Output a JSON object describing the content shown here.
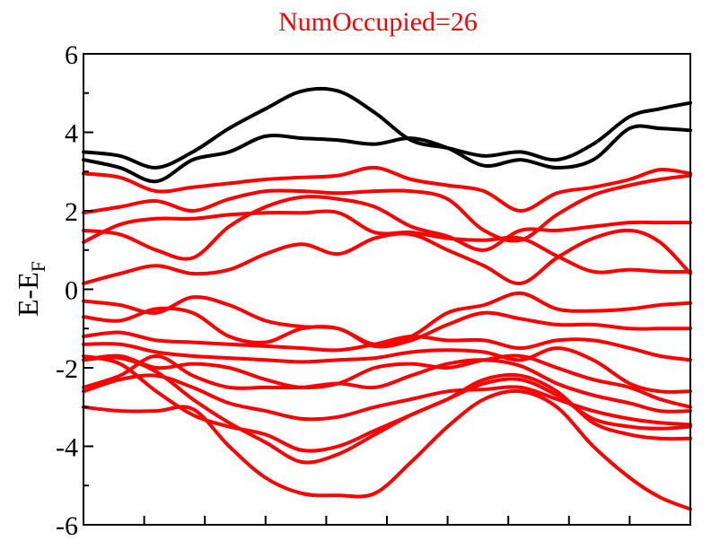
{
  "chart_data": {
    "type": "line",
    "title": "NumOccupied=26",
    "xlabel": "",
    "ylabel": "E-E",
    "ylabel_subscript": "F",
    "xlim": [
      0,
      1
    ],
    "ylim": [
      -6,
      6
    ],
    "y_ticks": [
      -6,
      -4,
      -2,
      0,
      2,
      4,
      6
    ],
    "y_tick_labels": [
      "-6",
      "-4",
      "-2",
      "0",
      "2",
      "4",
      "6"
    ],
    "x_minor_ticks": [
      0.1,
      0.2,
      0.3,
      0.4,
      0.5,
      0.6,
      0.7,
      0.8,
      0.9
    ],
    "grid": false,
    "legend": "none",
    "colors": {
      "occupied": "#ff0000",
      "unoccupied": "#000000",
      "title": "#ff0000",
      "axis": "#000000"
    },
    "x": [
      0.0,
      0.06,
      0.12,
      0.18,
      0.24,
      0.3,
      0.36,
      0.42,
      0.48,
      0.54,
      0.6,
      0.66,
      0.72,
      0.78,
      0.84,
      0.9,
      0.95,
      1.0
    ],
    "series": [
      {
        "group": "unoccupied",
        "values": [
          3.5,
          3.4,
          3.1,
          3.5,
          4.1,
          4.6,
          5.05,
          5.05,
          4.5,
          3.8,
          3.6,
          3.4,
          3.5,
          3.3,
          3.7,
          4.4,
          4.6,
          4.75
        ]
      },
      {
        "group": "unoccupied",
        "values": [
          3.3,
          3.1,
          2.75,
          3.3,
          3.5,
          3.9,
          3.85,
          3.8,
          3.7,
          3.85,
          3.6,
          3.15,
          3.3,
          3.1,
          3.3,
          4.1,
          4.1,
          4.05
        ]
      },
      {
        "group": "occupied",
        "values": [
          2.95,
          2.85,
          2.5,
          2.6,
          2.7,
          2.8,
          2.85,
          2.9,
          3.1,
          2.8,
          2.65,
          2.5,
          2.0,
          2.45,
          2.6,
          2.8,
          3.05,
          2.95
        ]
      },
      {
        "group": "occupied",
        "values": [
          1.95,
          2.1,
          2.25,
          2.0,
          2.3,
          2.5,
          2.5,
          2.45,
          2.5,
          2.5,
          2.3,
          1.5,
          1.25,
          1.9,
          2.4,
          2.65,
          2.8,
          2.9
        ]
      },
      {
        "group": "occupied",
        "values": [
          1.5,
          1.4,
          1.0,
          0.8,
          1.6,
          2.1,
          2.35,
          2.3,
          2.1,
          1.6,
          1.35,
          1.0,
          1.5,
          1.5,
          1.6,
          1.7,
          1.7,
          1.7
        ]
      },
      {
        "group": "occupied",
        "values": [
          1.2,
          1.65,
          1.8,
          1.8,
          1.9,
          1.95,
          1.95,
          1.95,
          1.45,
          1.45,
          1.3,
          1.25,
          1.3,
          0.85,
          0.45,
          0.5,
          0.45,
          0.45
        ]
      },
      {
        "group": "occupied",
        "values": [
          0.15,
          0.4,
          0.6,
          0.4,
          0.5,
          0.9,
          1.15,
          0.9,
          1.3,
          1.4,
          1.0,
          0.6,
          0.15,
          0.8,
          1.3,
          1.5,
          1.2,
          0.4
        ]
      },
      {
        "group": "occupied",
        "values": [
          -0.3,
          -0.4,
          -0.6,
          -0.2,
          -0.4,
          -0.8,
          -0.95,
          -1.0,
          -1.4,
          -1.2,
          -0.6,
          -0.4,
          -0.1,
          -0.5,
          -0.55,
          -0.5,
          -0.4,
          -0.35
        ]
      },
      {
        "group": "occupied",
        "values": [
          -0.7,
          -0.8,
          -0.5,
          -0.6,
          -1.2,
          -1.35,
          -1.0,
          -1.0,
          -1.45,
          -1.3,
          -0.9,
          -0.6,
          -0.75,
          -0.9,
          -0.9,
          -1.0,
          -1.0,
          -1.0
        ]
      },
      {
        "group": "occupied",
        "values": [
          -1.2,
          -1.1,
          -1.3,
          -1.35,
          -1.4,
          -1.45,
          -1.5,
          -1.55,
          -1.4,
          -1.2,
          -1.3,
          -1.3,
          -1.5,
          -1.3,
          -1.3,
          -1.5,
          -1.7,
          -1.8
        ]
      },
      {
        "group": "occupied",
        "values": [
          -1.4,
          -1.4,
          -1.6,
          -1.7,
          -1.75,
          -1.8,
          -1.85,
          -1.8,
          -1.75,
          -1.6,
          -1.55,
          -1.6,
          -1.8,
          -1.5,
          -1.8,
          -2.4,
          -2.6,
          -2.6
        ]
      },
      {
        "group": "occupied",
        "values": [
          -1.8,
          -1.7,
          -2.0,
          -1.9,
          -2.0,
          -2.3,
          -2.5,
          -2.4,
          -2.0,
          -1.9,
          -2.0,
          -1.8,
          -1.7,
          -2.0,
          -2.3,
          -2.5,
          -2.8,
          -3.0
        ]
      },
      {
        "group": "occupied",
        "values": [
          -2.5,
          -2.2,
          -1.7,
          -2.2,
          -2.5,
          -2.5,
          -2.5,
          -2.4,
          -2.5,
          -2.2,
          -1.9,
          -1.8,
          -1.95,
          -2.4,
          -2.7,
          -2.9,
          -3.1,
          -3.1
        ]
      },
      {
        "group": "occupied",
        "values": [
          -2.6,
          -2.3,
          -2.2,
          -2.5,
          -2.9,
          -3.1,
          -3.3,
          -3.25,
          -3.0,
          -2.8,
          -2.6,
          -2.55,
          -2.5,
          -2.8,
          -3.1,
          -3.3,
          -3.4,
          -3.45
        ]
      },
      {
        "group": "occupied",
        "values": [
          -1.7,
          -1.9,
          -2.6,
          -3.2,
          -3.5,
          -3.7,
          -4.1,
          -4.0,
          -3.6,
          -3.2,
          -2.8,
          -2.4,
          -2.3,
          -2.7,
          -3.3,
          -3.5,
          -3.55,
          -3.5
        ]
      },
      {
        "group": "occupied",
        "values": [
          -1.8,
          -1.75,
          -2.1,
          -2.8,
          -3.4,
          -3.9,
          -4.4,
          -4.2,
          -3.7,
          -3.2,
          -2.8,
          -2.3,
          -2.2,
          -2.6,
          -3.4,
          -3.7,
          -3.8,
          -3.8
        ]
      },
      {
        "group": "occupied",
        "values": [
          -3.0,
          -3.1,
          -3.1,
          -3.05,
          -4.0,
          -4.8,
          -5.2,
          -5.25,
          -5.2,
          -4.4,
          -3.5,
          -2.8,
          -2.6,
          -3.0,
          -4.0,
          -4.8,
          -5.3,
          -5.6
        ]
      }
    ]
  }
}
